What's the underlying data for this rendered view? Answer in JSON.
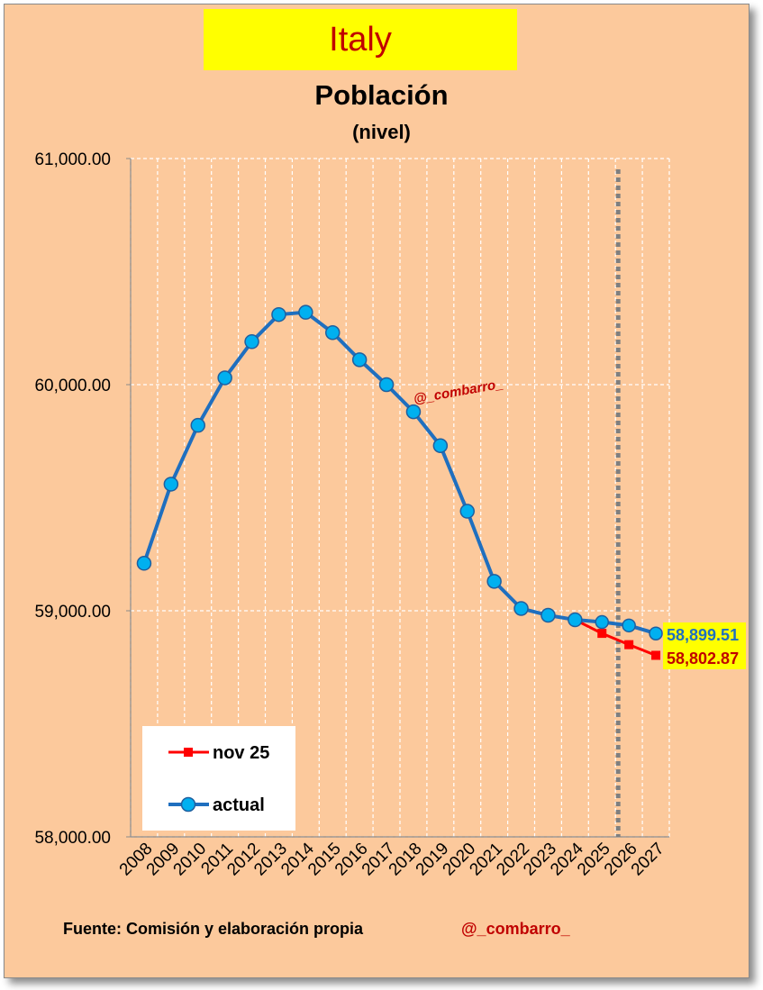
{
  "country": "Italy",
  "footer": {
    "source": "Fuente: Comisión y elaboración propia",
    "handle": "@_combarro_"
  },
  "chart_data": {
    "type": "line",
    "title": "Población",
    "subtitle": "(nivel)",
    "watermark": "@_combarro_",
    "categories": [
      "2008",
      "2009",
      "2010",
      "2011",
      "2012",
      "2013",
      "2014",
      "2015",
      "2016",
      "2017",
      "2018",
      "2019",
      "2020",
      "2021",
      "2022",
      "2023",
      "2024",
      "2025",
      "2026",
      "2027"
    ],
    "ylim": [
      58000,
      61000
    ],
    "yticks": [
      58000,
      59000,
      60000,
      61000
    ],
    "ytick_labels": [
      "58,000.00",
      "59,000.00",
      "60,000.00",
      "61,000.00"
    ],
    "grid": true,
    "forecast_divider_after": "2025",
    "legend_position": "bottom-left",
    "series": [
      {
        "name": "nov 25",
        "color": "#ff0000",
        "marker": "square",
        "values": [
          59210,
          59560,
          59820,
          60030,
          60190,
          60310,
          60320,
          60230,
          60110,
          60000,
          59880,
          59730,
          59440,
          59130,
          59010,
          58980,
          58960,
          58900,
          58850,
          58802.87
        ],
        "end_label": "58,802.87",
        "end_label_bg": "#ffff00",
        "end_label_color": "#c00000"
      },
      {
        "name": "actual",
        "color": "#1f6fbf",
        "marker": "circle",
        "marker_fill": "#00b0f0",
        "values": [
          59210,
          59560,
          59820,
          60030,
          60190,
          60310,
          60320,
          60230,
          60110,
          60000,
          59880,
          59730,
          59440,
          59130,
          59010,
          58980,
          58960,
          58950,
          58935,
          58899.51
        ],
        "end_label": "58,899.51",
        "end_label_bg": "#ffff00",
        "end_label_color": "#1f6fbf"
      }
    ]
  }
}
